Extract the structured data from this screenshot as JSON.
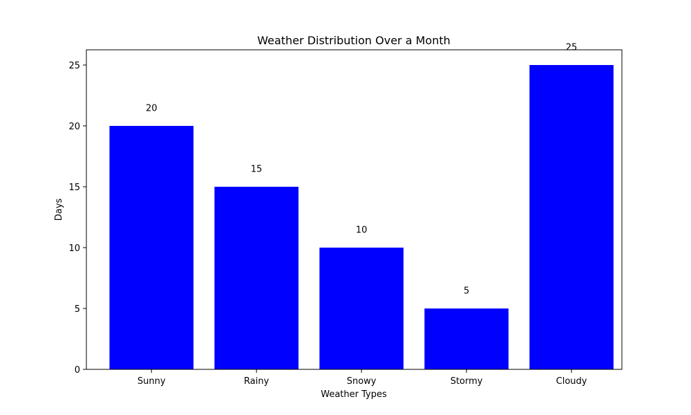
{
  "chart_data": {
    "type": "bar",
    "title": "Weather Distribution Over a Month",
    "xlabel": "Weather Types",
    "ylabel": "Days",
    "categories": [
      "Sunny",
      "Rainy",
      "Snowy",
      "Stormy",
      "Cloudy"
    ],
    "values": [
      20,
      15,
      10,
      5,
      25
    ],
    "data_labels": [
      "20",
      "15",
      "10",
      "5",
      "25"
    ],
    "yticks": [
      0,
      5,
      10,
      15,
      20,
      25
    ],
    "ytick_labels": [
      "0",
      "5",
      "10",
      "15",
      "20",
      "25"
    ],
    "ylim": [
      0,
      26.25
    ],
    "bar_color": "#0000ff",
    "grid": false,
    "legend": "none"
  }
}
